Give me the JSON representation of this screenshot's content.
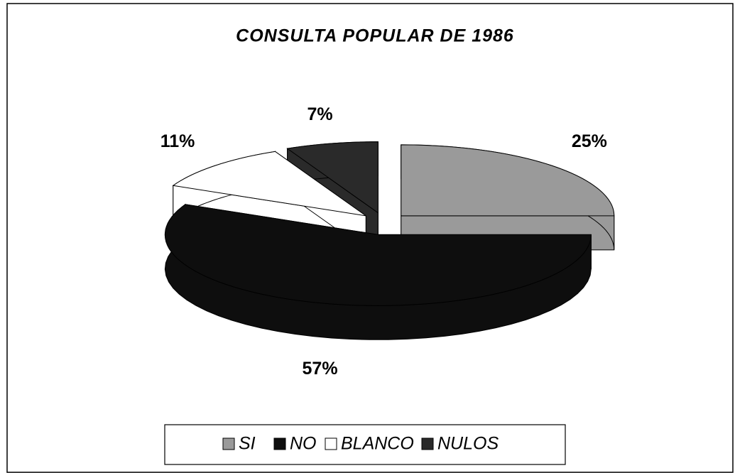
{
  "chart_data": {
    "type": "pie",
    "title": "CONSULTA POPULAR DE 1986",
    "categories": [
      "SI",
      "NO",
      "BLANCO",
      "NULOS"
    ],
    "values": [
      25,
      57,
      11,
      7
    ],
    "value_labels": [
      "25%",
      "57%",
      "11%",
      "7%"
    ],
    "colors": [
      "#9a9a9a",
      "#0e0e0e",
      "#ffffff",
      "#2a2a2a"
    ],
    "legend": "bottom"
  }
}
